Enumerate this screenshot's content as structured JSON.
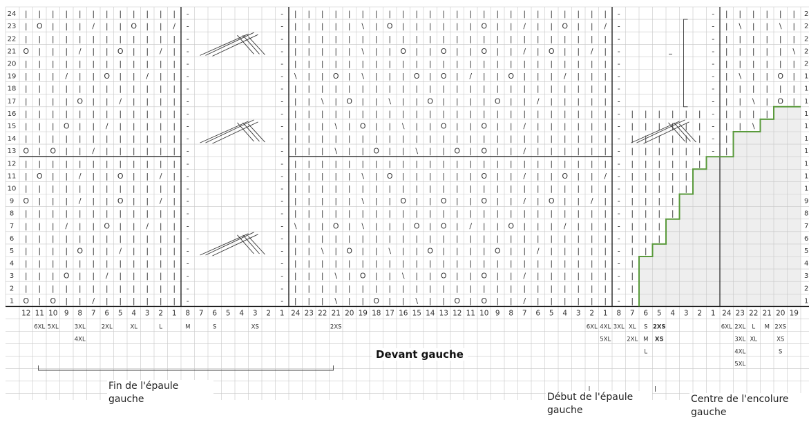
{
  "title": "Devant gauche",
  "captions": {
    "shoulder_end": "Fin de l'épaule gauche",
    "shoulder_start": "Début de l'épaule gauche",
    "neckline_center": "Centre de l'encolure gauche"
  },
  "row_labels": [
    "1",
    "2",
    "3",
    "4",
    "5",
    "6",
    "7",
    "8",
    "9",
    "10",
    "11",
    "12",
    "13",
    "14",
    "15",
    "16",
    "17",
    "18",
    "19",
    "20",
    "21",
    "22",
    "23",
    "24"
  ],
  "stitch_labels": [
    "12",
    "11",
    "10",
    "9",
    "8",
    "7",
    "6",
    "5",
    "4",
    "3",
    "2",
    "1",
    "8",
    "7",
    "6",
    "5",
    "4",
    "3",
    "2",
    "1",
    "24",
    "23",
    "22",
    "21",
    "20",
    "19",
    "18",
    "17",
    "16",
    "15",
    "14",
    "13",
    "12",
    "11",
    "10",
    "9",
    "8",
    "7",
    "6",
    "5",
    "4",
    "3",
    "2",
    "1",
    "8",
    "7",
    "6",
    "5",
    "4",
    "3",
    "2",
    "1",
    "24",
    "23",
    "22",
    "21",
    "20",
    "19"
  ],
  "size_labels": [
    {
      "text": "6XL",
      "col": 1,
      "row": 0
    },
    {
      "text": "5XL",
      "col": 2,
      "row": 0
    },
    {
      "text": "3XL",
      "col": 4,
      "row": 0
    },
    {
      "text": "4XL",
      "col": 4,
      "row": 1
    },
    {
      "text": "2XL",
      "col": 6,
      "row": 0
    },
    {
      "text": "XL",
      "col": 8,
      "row": 0
    },
    {
      "text": "L",
      "col": 10,
      "row": 0
    },
    {
      "text": "M",
      "col": 12,
      "row": 0
    },
    {
      "text": "S",
      "col": 14,
      "row": 0
    },
    {
      "text": "XS",
      "col": 17,
      "row": 0
    },
    {
      "text": "2XS",
      "col": 23,
      "row": 0
    },
    {
      "text": "6XL",
      "col": 42,
      "row": 0
    },
    {
      "text": "4XL",
      "col": 43,
      "row": 0
    },
    {
      "text": "3XL",
      "col": 44,
      "row": 0
    },
    {
      "text": "XL",
      "col": 45,
      "row": 0
    },
    {
      "text": "S",
      "col": 46,
      "row": 0
    },
    {
      "text": "2XS",
      "col": 47,
      "row": 0,
      "bold": true
    },
    {
      "text": "5XL",
      "col": 43,
      "row": 1
    },
    {
      "text": "2XL",
      "col": 45,
      "row": 1
    },
    {
      "text": "M",
      "col": 46,
      "row": 1
    },
    {
      "text": "XS",
      "col": 47,
      "row": 1,
      "bold": true
    },
    {
      "text": "L",
      "col": 46,
      "row": 2
    },
    {
      "text": "6XL",
      "col": 52,
      "row": 0
    },
    {
      "text": "2XL",
      "col": 53,
      "row": 0
    },
    {
      "text": "L",
      "col": 54,
      "row": 0
    },
    {
      "text": "M",
      "col": 55,
      "row": 0
    },
    {
      "text": "2XS",
      "col": 56,
      "row": 0
    },
    {
      "text": "3XL",
      "col": 53,
      "row": 1
    },
    {
      "text": "XL",
      "col": 54,
      "row": 1
    },
    {
      "text": "XS",
      "col": 56,
      "row": 1
    },
    {
      "text": "4XL",
      "col": 53,
      "row": 2
    },
    {
      "text": "S",
      "col": 56,
      "row": 2
    },
    {
      "text": "5XL",
      "col": 53,
      "row": 3
    }
  ],
  "symbols": {
    "knit": "|",
    "purl": "-",
    "yarn_over": "O",
    "k2tog": "/",
    "ssk": "\\"
  },
  "colors": {
    "grid": "#c8c8c8",
    "heavy": "#222222",
    "neckline": "#5a9a3c",
    "shade": "#eeeeee",
    "text": "#333333"
  }
}
